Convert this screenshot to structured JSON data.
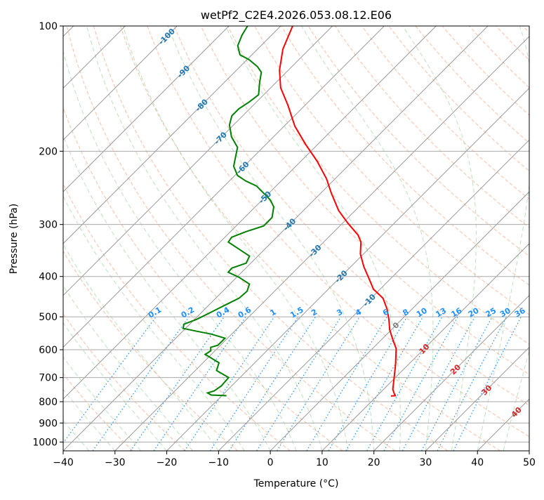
{
  "chart_data": {
    "type": "line",
    "subtype": "skew-t log-p",
    "title": "wetPf2_C2E4.2026.053.08.12.E06",
    "xlabel": "Temperature (°C)",
    "ylabel": "Pressure (hPa)",
    "xlim": [
      -40,
      50
    ],
    "ylim": [
      1050,
      100
    ],
    "x_ticks": [
      -40,
      -30,
      -20,
      -10,
      0,
      10,
      20,
      30,
      40,
      50
    ],
    "y_ticks": [
      100,
      200,
      300,
      400,
      500,
      600,
      700,
      800,
      900,
      1000
    ],
    "grid": true,
    "series": [
      {
        "name": "Temperature",
        "color": "#ff0000",
        "pressure": [
          100,
          113.7,
          127.7,
          140.7,
          155.1,
          174.2,
          192.0,
          211.6,
          233.2,
          252.0,
          277.7,
          297.7,
          318.1,
          330.7,
          353.3,
          378.8,
          404.7,
          429.0,
          451.2,
          478.3,
          507.0,
          537.4,
          565.1,
          596.8,
          652.6,
          705.2,
          747.4,
          762.1,
          774,
          775
        ],
        "temperature": [
          -77.7,
          -75.1,
          -71.7,
          -68.1,
          -63.3,
          -57.9,
          -52.5,
          -46.8,
          -41.6,
          -38.0,
          -33.2,
          -29.0,
          -24.7,
          -22.8,
          -20.6,
          -17.5,
          -14.2,
          -11.3,
          -7.7,
          -4.9,
          -2.5,
          -0.3,
          2.0,
          4.6,
          7.6,
          10.0,
          11.8,
          12.7,
          13.5,
          12.7
        ]
      },
      {
        "name": "Dewpoint",
        "color": "#008000",
        "pressure": [
          100,
          105.2,
          111.5,
          117.3,
          120.5,
          125.3,
          129.2,
          137.0,
          146.3,
          152.1,
          158.1,
          164.4,
          172.9,
          184.7,
          195.8,
          207.5,
          217.4,
          228.7,
          235.9,
          242.4,
          252.0,
          262.0,
          272.3,
          288.6,
          302.4,
          312.0,
          321.9,
          330.7,
          343.8,
          357.4,
          371.5,
          381.8,
          390.8,
          401.5,
          417.4,
          434.0,
          451.2,
          469.1,
          487.6,
          507.0,
          520.9,
          533.2,
          541.6,
          550.1,
          562.9,
          585.2,
          592.0,
          603.7,
          615.5,
          627.6,
          645.0,
          673.0,
          699.9,
          733.1,
          753.3,
          762.1,
          771.0,
          774
        ],
        "temperature": [
          -86.4,
          -85.7,
          -84.5,
          -82.3,
          -79.6,
          -76.6,
          -74.8,
          -73.1,
          -71.0,
          -71.4,
          -72.1,
          -72.1,
          -70.8,
          -68.1,
          -64.9,
          -63.3,
          -62.0,
          -59.5,
          -56.8,
          -53.8,
          -51.1,
          -48.4,
          -46.4,
          -44.7,
          -44.7,
          -47.0,
          -48.7,
          -48.4,
          -45.0,
          -41.6,
          -40.9,
          -42.7,
          -42.6,
          -39.6,
          -36.2,
          -35.3,
          -35.5,
          -36.9,
          -38.2,
          -39.6,
          -41.1,
          -40.5,
          -37.3,
          -34.0,
          -30.5,
          -30.5,
          -31.5,
          -30.8,
          -31.2,
          -29.4,
          -26.9,
          -25.9,
          -22.2,
          -22.0,
          -22.4,
          -23.3,
          -22.2,
          -19.1
        ]
      }
    ],
    "mixing_ratio_lines": {
      "color": "#1e90ff",
      "label_pressure": 500,
      "values": [
        "0.1",
        "0.2",
        "0.4",
        "0.6",
        "1",
        "1.5",
        "2",
        "3",
        "4",
        "6",
        "8",
        "10",
        "13",
        "16",
        "20",
        "25",
        "30",
        "36"
      ]
    },
    "isotherm_labels": [
      {
        "text": "-100",
        "t": -100,
        "p": 106,
        "color": "#1f77b4"
      },
      {
        "text": "-90",
        "t": -90,
        "p": 128.7,
        "color": "#1f77b4"
      },
      {
        "text": "-80",
        "t": -80,
        "p": 155,
        "color": "#1f77b4"
      },
      {
        "text": "-70",
        "t": -70,
        "p": 186,
        "color": "#1f77b4"
      },
      {
        "text": "-60",
        "t": -60,
        "p": 219,
        "color": "#1f77b4"
      },
      {
        "text": "-50",
        "t": -50,
        "p": 258,
        "color": "#1f77b4"
      },
      {
        "text": "-40",
        "t": -40,
        "p": 300,
        "color": "#1f77b4"
      },
      {
        "text": "-30",
        "t": -30,
        "p": 347,
        "color": "#1f77b4"
      },
      {
        "text": "-20",
        "t": -20,
        "p": 400,
        "color": "#1f77b4"
      },
      {
        "text": "-10",
        "t": -10,
        "p": 456,
        "color": "#1f77b4"
      },
      {
        "text": "0",
        "t": 0,
        "p": 524,
        "color": "#808080"
      },
      {
        "text": "10",
        "t": 10,
        "p": 597,
        "color": "#d62728"
      },
      {
        "text": "20",
        "t": 20,
        "p": 669,
        "color": "#d62728"
      },
      {
        "text": "30",
        "t": 30,
        "p": 750,
        "color": "#d62728"
      },
      {
        "text": "40",
        "t": 40,
        "p": 847,
        "color": "#d62728"
      }
    ]
  }
}
